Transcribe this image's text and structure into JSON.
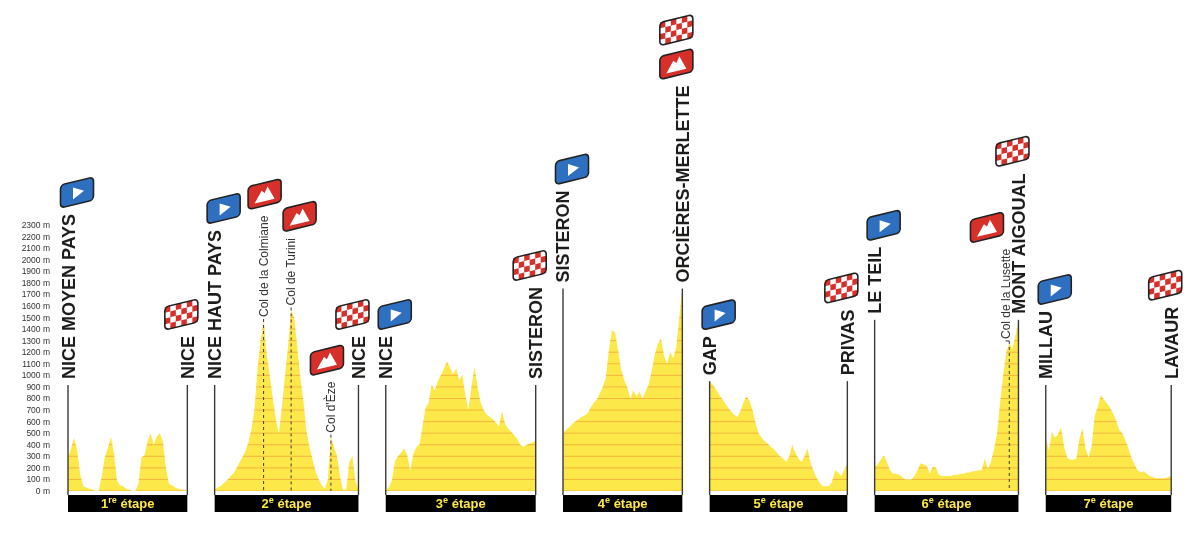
{
  "chart_data": [
    {
      "type": "area",
      "xlabel": "1$^{re}$ étape",
      "color": "#fde84a",
      "grid": "y",
      "ylim": [
        0,
        2300
      ],
      "yticks": [
        {
          "value": 0,
          "label": "0 m"
        },
        {
          "value": 100,
          "label": "100 m"
        },
        {
          "value": 200,
          "label": "200 m"
        },
        {
          "value": 300,
          "label": "300 m"
        },
        {
          "value": 400,
          "label": "400 m"
        },
        {
          "value": 500,
          "label": "500 m"
        },
        {
          "value": 600,
          "label": "600 m"
        },
        {
          "value": 700,
          "label": "700 m"
        },
        {
          "value": 800,
          "label": "800 m"
        },
        {
          "value": 900,
          "label": "900 m"
        },
        {
          "value": 1000,
          "label": "1000 m"
        },
        {
          "value": 1100,
          "label": "1100 m"
        },
        {
          "value": 1200,
          "label": "1200 m"
        },
        {
          "value": 1300,
          "label": "1300 m"
        },
        {
          "value": 1400,
          "label": "1400 m"
        },
        {
          "value": 1500,
          "label": "1500 m"
        },
        {
          "value": 1600,
          "label": "1600 m"
        },
        {
          "value": 1700,
          "label": "1700 m"
        },
        {
          "value": 1800,
          "label": "1800 m"
        },
        {
          "value": 1900,
          "label": "1900 m"
        },
        {
          "value": 2000,
          "label": "2000 m"
        },
        {
          "value": 2100,
          "label": "2100 m"
        },
        {
          "value": 2200,
          "label": "2200 m"
        },
        {
          "value": 2300,
          "label": "2300 m"
        }
      ],
      "categories": [
        "NICE MOYEN PAYS",
        null,
        null,
        null,
        null,
        null,
        null,
        null,
        null,
        null,
        null,
        null,
        null,
        null,
        null,
        null,
        null,
        null,
        null,
        null,
        null,
        null,
        null,
        null,
        null,
        null,
        null,
        null,
        null,
        null,
        null,
        null,
        null,
        null,
        null,
        null,
        null,
        null,
        null,
        "NICE"
      ],
      "values": [
        280,
        370,
        460,
        350,
        140,
        40,
        30,
        20,
        10,
        0,
        0,
        120,
        290,
        370,
        470,
        330,
        90,
        50,
        40,
        20,
        10,
        0,
        0,
        60,
        290,
        310,
        430,
        500,
        400,
        470,
        500,
        430,
        200,
        60,
        50,
        30,
        20,
        10,
        10,
        0
      ]
    },
    {
      "type": "area",
      "xlabel": "2$^{e}$ étape",
      "color": "#fde84a",
      "grid": "y",
      "ylim": [
        0,
        2300
      ],
      "tick_labels": "x",
      "yticks": [
        0,
        100,
        200,
        300,
        400,
        500,
        600,
        700,
        800,
        900,
        1000,
        1100,
        1200,
        1300,
        1400,
        1500,
        1600,
        1700,
        1800,
        1900,
        2000,
        2100,
        2200,
        2300
      ],
      "annotations": [
        {
          "text": "Col de la Colmiane",
          "y": 1470
        },
        {
          "text": "Col de Turini",
          "y": 1570
        },
        {
          "text": "Col d'Èze",
          "y": 470
        }
      ],
      "categories": [
        "NICE HAUT PAYS",
        null,
        null,
        null,
        null,
        null,
        null,
        null,
        null,
        null,
        null,
        null,
        null,
        null,
        null,
        null,
        null,
        null,
        null,
        null,
        null,
        null,
        null,
        null,
        null,
        null,
        null,
        null,
        null,
        null,
        null,
        null,
        null,
        null,
        null,
        null,
        null,
        null,
        null,
        null,
        null,
        null,
        null,
        null,
        null,
        null,
        null,
        "NICE"
      ],
      "values": [
        10,
        30,
        40,
        70,
        90,
        120,
        150,
        190,
        240,
        290,
        340,
        420,
        530,
        700,
        1050,
        1300,
        1470,
        1190,
        1000,
        800,
        620,
        500,
        730,
        1000,
        1250,
        1570,
        1500,
        1250,
        980,
        780,
        520,
        380,
        270,
        170,
        100,
        50,
        20,
        100,
        470,
        380,
        300,
        120,
        10,
        10,
        250,
        300,
        90,
        10
      ]
    },
    {
      "type": "area",
      "xlabel": "3$^{e}$ étape",
      "color": "#fde84a",
      "grid": "y",
      "ylim": [
        0,
        2300
      ],
      "tick_labels": "x",
      "yticks": [
        0,
        100,
        200,
        300,
        400,
        500,
        600,
        700,
        800,
        900,
        1000,
        1100,
        1200,
        1300,
        1400,
        1500,
        1600,
        1700,
        1800,
        1900,
        2000,
        2100,
        2200,
        2300
      ],
      "categories": [
        "NICE",
        null,
        null,
        null,
        null,
        null,
        null,
        null,
        null,
        null,
        null,
        null,
        null,
        null,
        null,
        null,
        null,
        null,
        null,
        null,
        null,
        null,
        null,
        null,
        null,
        null,
        null,
        null,
        null,
        null,
        null,
        null,
        null,
        null,
        null,
        null,
        null,
        null,
        null,
        null,
        null,
        null,
        null,
        null,
        null,
        null,
        null,
        null,
        null,
        "SISTERON"
      ],
      "values": [
        10,
        30,
        90,
        260,
        300,
        330,
        370,
        310,
        180,
        320,
        380,
        400,
        560,
        720,
        760,
        920,
        870,
        950,
        1000,
        1060,
        1120,
        1070,
        1010,
        1060,
        960,
        1000,
        830,
        700,
        900,
        1070,
        900,
        760,
        700,
        660,
        640,
        620,
        590,
        560,
        690,
        580,
        540,
        510,
        480,
        450,
        400,
        380,
        400,
        410,
        420,
        440
      ]
    },
    {
      "type": "area",
      "xlabel": "4$^{e}$ étape",
      "color": "#fde84a",
      "grid": "y",
      "ylim": [
        0,
        2300
      ],
      "tick_labels": "x",
      "yticks": [
        0,
        100,
        200,
        300,
        400,
        500,
        600,
        700,
        800,
        900,
        1000,
        1100,
        1200,
        1300,
        1400,
        1500,
        1600,
        1700,
        1800,
        1900,
        2000,
        2100,
        2200,
        2300
      ],
      "categories": [
        "SISTERON",
        null,
        null,
        null,
        null,
        null,
        null,
        null,
        null,
        null,
        null,
        null,
        null,
        null,
        null,
        null,
        null,
        null,
        null,
        null,
        null,
        null,
        null,
        null,
        null,
        null,
        null,
        null,
        null,
        null,
        null,
        null,
        null,
        null,
        null,
        null,
        null,
        null,
        null,
        "ORCIÈRES-MERLETTE"
      ],
      "values": [
        500,
        530,
        550,
        580,
        600,
        620,
        640,
        650,
        670,
        720,
        760,
        790,
        840,
        900,
        980,
        1220,
        1390,
        1370,
        1220,
        1050,
        960,
        900,
        800,
        870,
        820,
        860,
        800,
        860,
        920,
        1040,
        1180,
        1270,
        1320,
        1170,
        1100,
        1200,
        1150,
        1240,
        1500,
        1750
      ]
    },
    {
      "type": "area",
      "xlabel": "5$^{e}$ étape",
      "color": "#fde84a",
      "grid": "y",
      "ylim": [
        0,
        2300
      ],
      "tick_labels": "x",
      "yticks": [
        0,
        100,
        200,
        300,
        400,
        500,
        600,
        700,
        800,
        900,
        1000,
        1100,
        1200,
        1300,
        1400,
        1500,
        1600,
        1700,
        1800,
        1900,
        2000,
        2100,
        2200,
        2300
      ],
      "categories": [
        "GAP",
        null,
        null,
        null,
        null,
        null,
        null,
        null,
        null,
        null,
        null,
        null,
        null,
        null,
        null,
        null,
        null,
        null,
        null,
        null,
        null,
        null,
        null,
        null,
        null,
        null,
        null,
        null,
        null,
        null,
        null,
        null,
        null,
        null,
        null,
        null,
        null,
        null,
        null,
        null,
        null,
        null,
        null,
        null,
        null,
        "PRIVAS"
      ],
      "values": [
        950,
        920,
        880,
        840,
        800,
        760,
        720,
        690,
        660,
        640,
        690,
        760,
        820,
        780,
        700,
        590,
        500,
        460,
        430,
        410,
        380,
        360,
        330,
        300,
        280,
        250,
        300,
        400,
        330,
        280,
        250,
        300,
        370,
        240,
        170,
        110,
        70,
        40,
        40,
        40,
        80,
        180,
        160,
        130,
        180,
        240
      ]
    },
    {
      "type": "area",
      "xlabel": "6$^{e}$ étape",
      "color": "#fde84a",
      "grid": "y",
      "ylim": [
        0,
        2300
      ],
      "tick_labels": "x",
      "yticks": [
        0,
        100,
        200,
        300,
        400,
        500,
        600,
        700,
        800,
        900,
        1000,
        1100,
        1200,
        1300,
        1400,
        1500,
        1600,
        1700,
        1800,
        1900,
        2000,
        2100,
        2200,
        2300
      ],
      "annotations": [
        {
          "text": "Col de la Lusette",
          "y": 1280
        }
      ],
      "categories": [
        "LE TEIL",
        null,
        null,
        null,
        null,
        null,
        null,
        null,
        null,
        null,
        null,
        null,
        null,
        null,
        null,
        null,
        null,
        null,
        null,
        null,
        null,
        null,
        null,
        null,
        null,
        null,
        null,
        null,
        null,
        null,
        null,
        null,
        null,
        null,
        null,
        null,
        null,
        null,
        null,
        null,
        null,
        null,
        null,
        null,
        null,
        null,
        null,
        "MONT AIGOUAL"
      ],
      "values": [
        210,
        230,
        270,
        310,
        250,
        180,
        150,
        150,
        140,
        120,
        100,
        100,
        100,
        130,
        180,
        240,
        230,
        220,
        150,
        210,
        200,
        140,
        130,
        130,
        130,
        130,
        140,
        140,
        150,
        150,
        160,
        160,
        170,
        170,
        180,
        180,
        280,
        190,
        250,
        360,
        500,
        760,
        1000,
        1200,
        1280,
        1230,
        1340,
        1480
      ]
    },
    {
      "type": "area",
      "xlabel": "7$^{e}$ étape",
      "color": "#fde84a",
      "grid": "y",
      "ylim": [
        0,
        2300
      ],
      "tick_labels": "x",
      "yticks": [
        0,
        100,
        200,
        300,
        400,
        500,
        600,
        700,
        800,
        900,
        1000,
        1100,
        1200,
        1300,
        1400,
        1500,
        1600,
        1700,
        1800,
        1900,
        2000,
        2100,
        2200,
        2300
      ],
      "categories": [
        "MILLAU",
        null,
        null,
        null,
        null,
        null,
        null,
        null,
        null,
        null,
        null,
        null,
        null,
        null,
        null,
        null,
        null,
        null,
        null,
        null,
        null,
        null,
        null,
        null,
        null,
        null,
        null,
        null,
        null,
        null,
        null,
        null,
        null,
        null,
        null,
        null,
        null,
        null,
        null,
        null,
        null,
        "LAVAUR"
      ],
      "values": [
        450,
        350,
        510,
        460,
        490,
        550,
        380,
        290,
        270,
        270,
        280,
        450,
        540,
        360,
        290,
        390,
        650,
        730,
        830,
        790,
        760,
        720,
        670,
        610,
        530,
        500,
        440,
        370,
        290,
        230,
        180,
        160,
        170,
        150,
        130,
        120,
        110,
        110,
        110,
        110,
        120,
        130
      ]
    }
  ]
}
